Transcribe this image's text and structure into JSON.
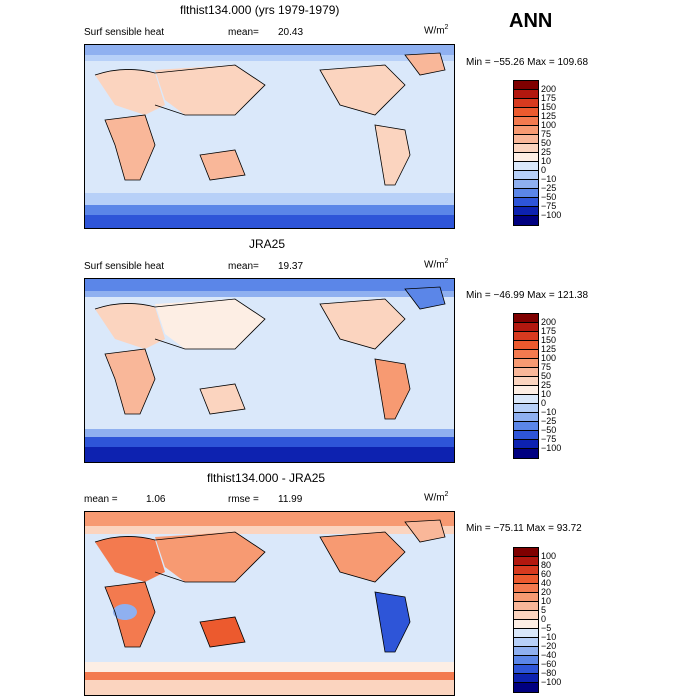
{
  "season": "ANN",
  "panels": [
    {
      "title": "flthist134.000 (yrs 1979-1979)",
      "left_label": "Surf sensible heat",
      "mean_label": "mean=",
      "mean_value": "20.43",
      "unit_base": "W/m",
      "unit_exp": "2",
      "minmax": "Min = −55.26  Max = 109.68",
      "colorbar_labels": [
        "200",
        "175",
        "150",
        "125",
        "100",
        "75",
        "50",
        "25",
        "10",
        "0",
        "−10",
        "−25",
        "−50",
        "−75",
        "−100"
      ],
      "colors": [
        "#7f0000",
        "#b2180f",
        "#d73a1f",
        "#ec5a2e",
        "#f37a4f",
        "#f79a72",
        "#f9b799",
        "#fbd4bf",
        "#fdeee4",
        "#dae8fa",
        "#b7d0f8",
        "#8fb0f0",
        "#5b86e8",
        "#2e55d8",
        "#0d22b0",
        "#000080"
      ]
    },
    {
      "title": "JRA25",
      "left_label": "Surf sensible heat",
      "mean_label": "mean=",
      "mean_value": "19.37",
      "unit_base": "W/m",
      "unit_exp": "2",
      "minmax": "Min = −46.99  Max = 121.38",
      "colorbar_labels": [
        "200",
        "175",
        "150",
        "125",
        "100",
        "75",
        "50",
        "25",
        "10",
        "0",
        "−10",
        "−25",
        "−50",
        "−75",
        "−100"
      ],
      "colors": [
        "#7f0000",
        "#b2180f",
        "#d73a1f",
        "#ec5a2e",
        "#f37a4f",
        "#f79a72",
        "#f9b799",
        "#fbd4bf",
        "#fdeee4",
        "#dae8fa",
        "#b7d0f8",
        "#8fb0f0",
        "#5b86e8",
        "#2e55d8",
        "#0d22b0",
        "#000080"
      ]
    },
    {
      "title": "flthist134.000 - JRA25",
      "left_label": "mean =",
      "mean_label": "",
      "mean_value": "1.06",
      "rmse_label": "rmse =",
      "rmse_value": "11.99",
      "unit_base": "W/m",
      "unit_exp": "2",
      "minmax": "Min = −75.11  Max =  93.72",
      "colorbar_labels": [
        "100",
        "80",
        "60",
        "40",
        "20",
        "10",
        "5",
        "0",
        "−5",
        "−10",
        "−20",
        "−40",
        "−60",
        "−80",
        "−100"
      ],
      "colors": [
        "#7f0000",
        "#b2180f",
        "#d73a1f",
        "#ec5a2e",
        "#f37a4f",
        "#f79a72",
        "#f9b799",
        "#fbd4bf",
        "#fdeee4",
        "#dae8fa",
        "#b7d0f8",
        "#8fb0f0",
        "#5b86e8",
        "#2e55d8",
        "#0d22b0",
        "#000080"
      ]
    }
  ]
}
